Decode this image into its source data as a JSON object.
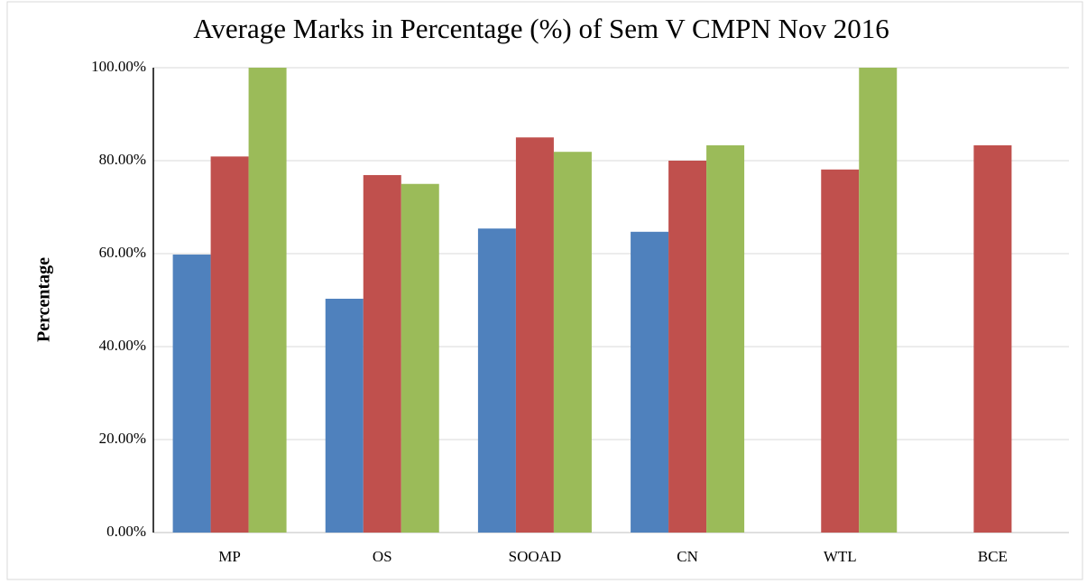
{
  "chart_data": {
    "type": "bar",
    "title": "Average Marks in Percentage (%) of Sem V CMPN Nov 2016",
    "y_label": "Percentage",
    "categories": [
      "MP",
      "OS",
      "SOOAD",
      "CN",
      "WTL",
      "BCE"
    ],
    "series": [
      {
        "color": "#4f81bd",
        "values": [
          59.8,
          50.3,
          65.4,
          64.7,
          null,
          null
        ]
      },
      {
        "color": "#c0504d",
        "values": [
          80.9,
          76.9,
          85.0,
          80.0,
          78.1,
          83.3
        ]
      },
      {
        "color": "#9bbb59",
        "values": [
          100,
          75.0,
          81.9,
          83.3,
          100,
          null
        ]
      }
    ],
    "ylim": [
      0,
      100
    ],
    "yticks": [
      {
        "value": 0,
        "label": "0.00%"
      },
      {
        "value": 20,
        "label": "20.00%"
      },
      {
        "value": 40,
        "label": "40.00%"
      },
      {
        "value": 60,
        "label": "60.00%"
      },
      {
        "value": 80,
        "label": "80.00%"
      },
      {
        "value": 100,
        "label": "100.00%"
      }
    ],
    "grid": true
  }
}
